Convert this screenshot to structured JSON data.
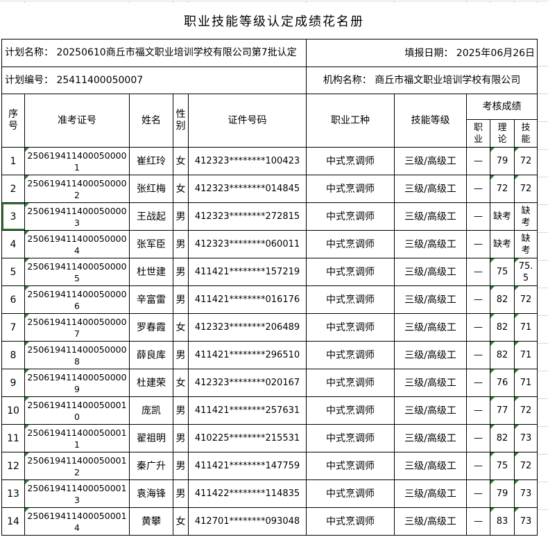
{
  "title": "职业技能等级认定成绩花名册",
  "info": {
    "plan_name": "计划名称： 20250610商丘市福文职业培训学校有限公司第7批认定",
    "fill_date": "填报日期： 2025年06月26日",
    "plan_code": "计划编号： 25411400050007",
    "org_name": "机构名称： 商丘市福文职业培训学校有限公司"
  },
  "headers": {
    "seq": "序号",
    "ticket": "准考证号",
    "name": "姓名",
    "gender": "性别",
    "id_no": "证件号码",
    "occupation": "职业工种",
    "level": "技能等级",
    "score_group": "考核成绩",
    "s_occ": "职业",
    "s_theory": "理论",
    "s_skill": "技能"
  },
  "colors": {
    "triangle_green": "#2e7d32",
    "gridline": "#d9d9d9",
    "border": "#000000",
    "background": "#ffffff"
  },
  "rows": [
    {
      "seq": "1",
      "ticket": "2506194114000500001",
      "name": "崔红玲",
      "gender": "女",
      "id_no": "412323********100423",
      "occupation": "中式烹调师",
      "level": "三级/高级工",
      "s_occ": "—",
      "s_theory": "79",
      "s_skill": "72",
      "flags": [
        "ticket",
        "s_theory",
        "s_skill"
      ]
    },
    {
      "seq": "2",
      "ticket": "2506194114000500002",
      "name": "张红梅",
      "gender": "女",
      "id_no": "412323********014845",
      "occupation": "中式烹调师",
      "level": "三级/高级工",
      "s_occ": "—",
      "s_theory": "72",
      "s_skill": "72",
      "flags": [
        "ticket",
        "s_theory",
        "s_skill"
      ]
    },
    {
      "seq": "3",
      "ticket": "2506194114000500003",
      "name": "王战起",
      "gender": "男",
      "id_no": "412323********272815",
      "occupation": "中式烹调师",
      "level": "三级/高级工",
      "s_occ": "—",
      "s_theory": "缺考",
      "s_skill": "缺考",
      "flags": [
        "ticket"
      ],
      "outline": "seq"
    },
    {
      "seq": "4",
      "ticket": "2506194114000500004",
      "name": "张军臣",
      "gender": "男",
      "id_no": "412323********060011",
      "occupation": "中式烹调师",
      "level": "三级/高级工",
      "s_occ": "—",
      "s_theory": "缺考",
      "s_skill": "缺考",
      "flags": [
        "ticket"
      ]
    },
    {
      "seq": "5",
      "ticket": "2506194114000500005",
      "name": "杜世建",
      "gender": "男",
      "id_no": "411421********157219",
      "occupation": "中式烹调师",
      "level": "三级/高级工",
      "s_occ": "—",
      "s_theory": "75",
      "s_skill": "75.5",
      "flags": [
        "ticket",
        "s_theory",
        "s_skill"
      ]
    },
    {
      "seq": "6",
      "ticket": "2506194114000500006",
      "name": "辛富雷",
      "gender": "男",
      "id_no": "411421********016176",
      "occupation": "中式烹调师",
      "level": "三级/高级工",
      "s_occ": "—",
      "s_theory": "82",
      "s_skill": "72",
      "flags": [
        "ticket",
        "s_theory",
        "s_skill"
      ]
    },
    {
      "seq": "7",
      "ticket": "2506194114000500007",
      "name": "罗春霞",
      "gender": "女",
      "id_no": "412323********206489",
      "occupation": "中式烹调师",
      "level": "三级/高级工",
      "s_occ": "—",
      "s_theory": "82",
      "s_skill": "71",
      "flags": [
        "ticket",
        "s_theory",
        "s_skill"
      ]
    },
    {
      "seq": "8",
      "ticket": "2506194114000500008",
      "name": "薛良库",
      "gender": "男",
      "id_no": "411421********296510",
      "occupation": "中式烹调师",
      "level": "三级/高级工",
      "s_occ": "—",
      "s_theory": "82",
      "s_skill": "71",
      "flags": [
        "ticket",
        "s_theory",
        "s_skill"
      ]
    },
    {
      "seq": "9",
      "ticket": "2506194114000500009",
      "name": "杜建荣",
      "gender": "女",
      "id_no": "412323********020167",
      "occupation": "中式烹调师",
      "level": "三级/高级工",
      "s_occ": "—",
      "s_theory": "76",
      "s_skill": "71",
      "flags": [
        "ticket",
        "s_theory",
        "s_skill"
      ]
    },
    {
      "seq": "10",
      "ticket": "2506194114000500010",
      "name": "庞凯",
      "gender": "男",
      "id_no": "411421********257631",
      "occupation": "中式烹调师",
      "level": "三级/高级工",
      "s_occ": "—",
      "s_theory": "77",
      "s_skill": "72",
      "flags": [
        "ticket",
        "s_theory",
        "s_skill"
      ]
    },
    {
      "seq": "11",
      "ticket": "2506194114000500011",
      "name": "翟祖明",
      "gender": "男",
      "id_no": "410225********215531",
      "occupation": "中式烹调师",
      "level": "三级/高级工",
      "s_occ": "—",
      "s_theory": "82",
      "s_skill": "73",
      "flags": [
        "ticket",
        "s_theory",
        "s_skill"
      ]
    },
    {
      "seq": "12",
      "ticket": "2506194114000500012",
      "name": "秦广升",
      "gender": "男",
      "id_no": "411421********147759",
      "occupation": "中式烹调师",
      "level": "三级/高级工",
      "s_occ": "—",
      "s_theory": "75",
      "s_skill": "72",
      "flags": [
        "ticket",
        "s_theory",
        "s_skill"
      ]
    },
    {
      "seq": "13",
      "ticket": "2506194114000500013",
      "name": "袁海锋",
      "gender": "男",
      "id_no": "411422********114835",
      "occupation": "中式烹调师",
      "level": "三级/高级工",
      "s_occ": "—",
      "s_theory": "79",
      "s_skill": "73",
      "flags": [
        "ticket",
        "s_theory",
        "s_skill"
      ]
    },
    {
      "seq": "14",
      "ticket": "2506194114000500014",
      "name": "黄攀",
      "gender": "女",
      "id_no": "412701********093048",
      "occupation": "中式烹调师",
      "level": "三级/高级工",
      "s_occ": "—",
      "s_theory": "83",
      "s_skill": "73",
      "flags": [
        "ticket",
        "s_theory",
        "s_skill"
      ]
    }
  ]
}
